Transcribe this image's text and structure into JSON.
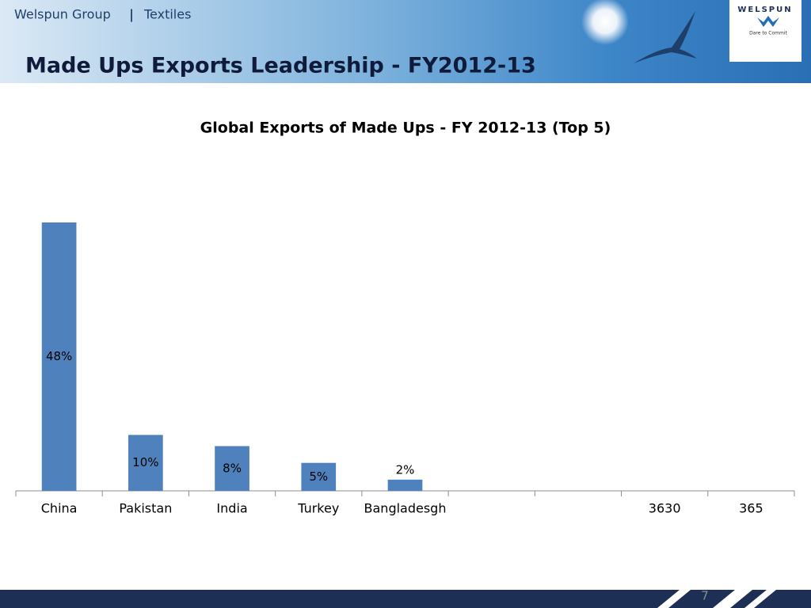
{
  "header": {
    "company": "Welspun Group",
    "separator": "|",
    "division": "Textiles",
    "title": "Made Ups Exports Leadership - FY2012-13",
    "logo": "WELSPUN",
    "tagline": "Dare to Commit"
  },
  "page_number": "7",
  "chart_data": {
    "type": "bar",
    "title": "Global Exports of Made Ups - FY 2012-13 (Top 5)",
    "categories": [
      "China",
      "Pakistan",
      "India",
      "Turkey",
      "Bangladesgh",
      null,
      null,
      "3630",
      "365"
    ],
    "values": [
      48,
      10,
      8,
      5,
      2,
      null,
      null,
      null,
      null
    ],
    "value_labels": [
      "48%",
      "10%",
      "8%",
      "5%",
      "2%",
      null,
      null,
      null,
      null
    ],
    "color": "#4f81bd"
  }
}
